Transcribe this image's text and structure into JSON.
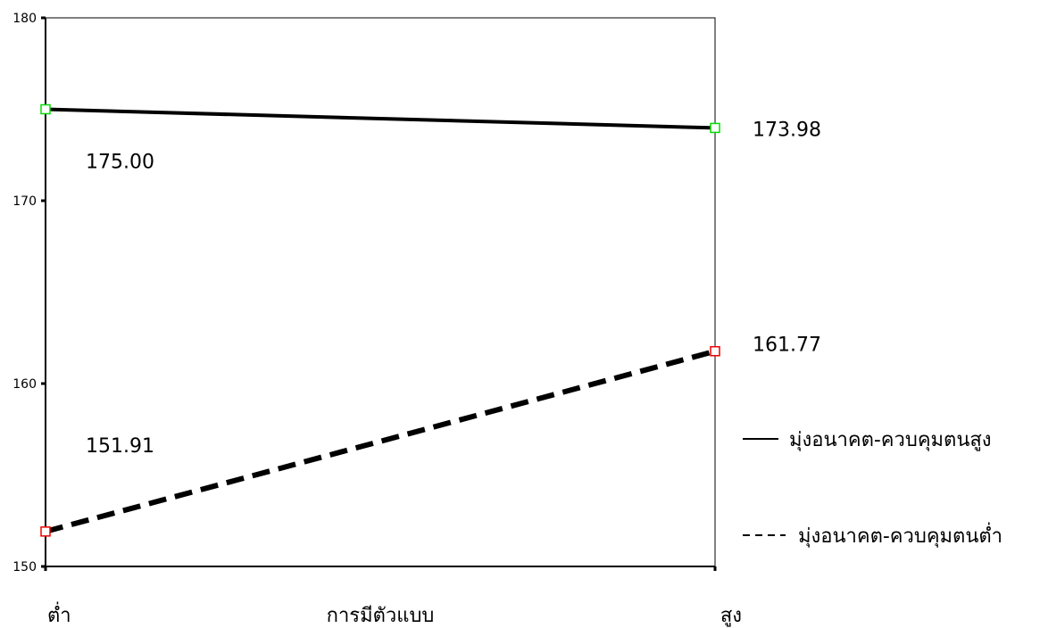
{
  "chart_data": {
    "type": "line",
    "title": "",
    "xlabel": "การมีตัวแบบ",
    "ylabel": "",
    "categories": [
      "ต่ำ",
      "สูง"
    ],
    "ylim": [
      150,
      180
    ],
    "yticks": [
      150,
      160,
      170,
      180
    ],
    "legend_position": "right",
    "series": [
      {
        "name": "มุ่งอนาคต-ควบคุมตนสูง",
        "values": [
          175.0,
          173.98
        ],
        "labels": [
          "175.00",
          "173.98"
        ],
        "line_style": "solid",
        "marker_color": "#00dd00"
      },
      {
        "name": "มุ่งอนาคต-ควบคุมตนต่ำ",
        "values": [
          151.91,
          161.77
        ],
        "labels": [
          "151.91",
          "161.77"
        ],
        "line_style": "dashed",
        "marker_color": "#ee0000"
      }
    ],
    "colors": {
      "line": "#000000",
      "frame": "#000000"
    }
  }
}
